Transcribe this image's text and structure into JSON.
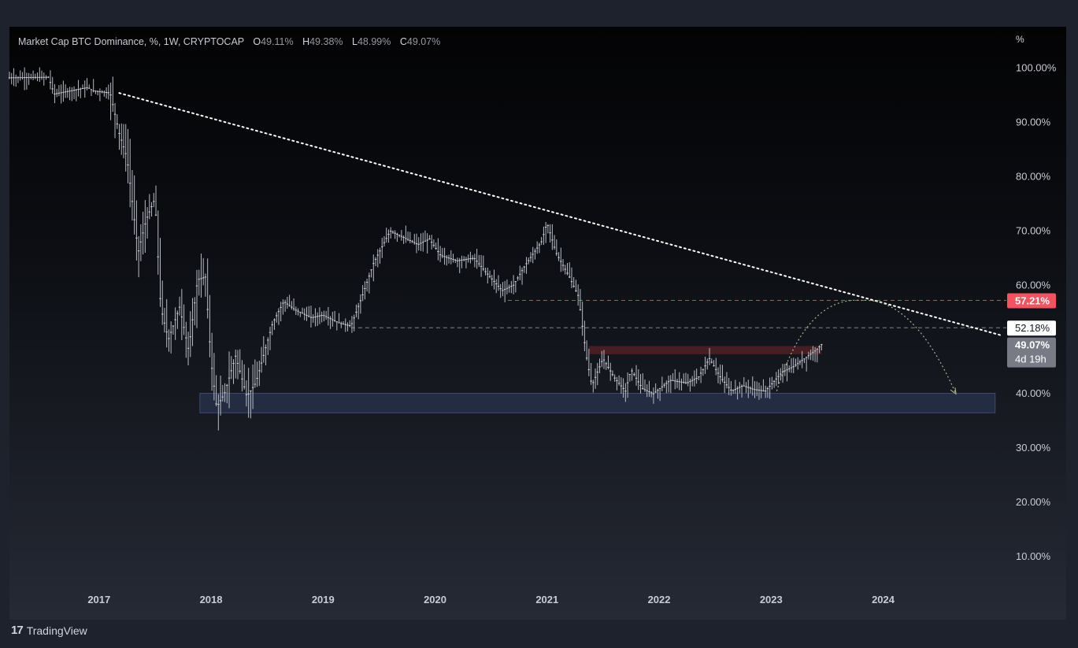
{
  "legend": {
    "title": "Market Cap BTC Dominance, %, 1W, CRYPTOCAP",
    "open_label": "O",
    "open_value": "49.11%",
    "high_label": "H",
    "high_value": "49.38%",
    "low_label": "L",
    "low_value": "48.99%",
    "close_label": "C",
    "close_value": "49.07%"
  },
  "price_scale": {
    "unit": "%"
  },
  "branding": {
    "mark": "17",
    "name": "TradingView"
  },
  "price_labels": {
    "resistance": {
      "text": "57.21%",
      "value": 57.21,
      "color": "#f7525f"
    },
    "level": {
      "text": "52.18%",
      "value": 52.18
    },
    "last": {
      "text": "49.07%",
      "value": 49.07,
      "countdown": "4d 19h"
    }
  },
  "chart_data": {
    "type": "candlestick",
    "title": "Market Cap BTC Dominance, %, 1W, CRYPTOCAP",
    "xlabel": "",
    "ylabel": "%",
    "ylim": [
      4.5,
      107.6
    ],
    "xlim": [
      2016.2,
      2025.1
    ],
    "y_ticks": [
      {
        "value": 100,
        "label": "100.00%"
      },
      {
        "value": 90,
        "label": "90.00%"
      },
      {
        "value": 80,
        "label": "80.00%"
      },
      {
        "value": 70,
        "label": "70.00%"
      },
      {
        "value": 60,
        "label": "60.00%"
      },
      {
        "value": 40,
        "label": "40.00%"
      },
      {
        "value": 30,
        "label": "30.00%"
      },
      {
        "value": 20,
        "label": "20.00%"
      },
      {
        "value": 10,
        "label": "10.00%"
      }
    ],
    "x_ticks": [
      {
        "value": 2017,
        "label": "2017"
      },
      {
        "value": 2018,
        "label": "2018"
      },
      {
        "value": 2019,
        "label": "2019"
      },
      {
        "value": 2020,
        "label": "2020"
      },
      {
        "value": 2021,
        "label": "2021"
      },
      {
        "value": 2022,
        "label": "2022"
      },
      {
        "value": 2023,
        "label": "2023"
      },
      {
        "value": 2024,
        "label": "2024"
      }
    ],
    "price_path": [
      [
        2016.2,
        98.2
      ],
      [
        2016.55,
        98.3
      ],
      [
        2016.6,
        95.2
      ],
      [
        2016.9,
        96.4
      ],
      [
        2016.95,
        95.8
      ],
      [
        2017.1,
        95.4
      ],
      [
        2017.18,
        88.0
      ],
      [
        2017.25,
        83.5
      ],
      [
        2017.35,
        66.0
      ],
      [
        2017.42,
        72.0
      ],
      [
        2017.5,
        76.0
      ],
      [
        2017.55,
        56.0
      ],
      [
        2017.62,
        50.0
      ],
      [
        2017.72,
        56.0
      ],
      [
        2017.8,
        48.0
      ],
      [
        2017.88,
        61.0
      ],
      [
        2017.95,
        61.5
      ],
      [
        2018.0,
        46.0
      ],
      [
        2018.05,
        37.5
      ],
      [
        2018.12,
        40.0
      ],
      [
        2018.22,
        47.0
      ],
      [
        2018.32,
        39.5
      ],
      [
        2018.4,
        42.0
      ],
      [
        2018.55,
        53.0
      ],
      [
        2018.65,
        57.0
      ],
      [
        2018.75,
        55.5
      ],
      [
        2018.9,
        54.0
      ],
      [
        2019.0,
        54.5
      ],
      [
        2019.15,
        53.0
      ],
      [
        2019.25,
        52.5
      ],
      [
        2019.35,
        58.0
      ],
      [
        2019.45,
        64.0
      ],
      [
        2019.6,
        70.0
      ],
      [
        2019.7,
        69.0
      ],
      [
        2019.85,
        67.5
      ],
      [
        2019.95,
        68.5
      ],
      [
        2020.05,
        65.5
      ],
      [
        2020.2,
        64.5
      ],
      [
        2020.35,
        65.0
      ],
      [
        2020.45,
        62.5
      ],
      [
        2020.6,
        59.0
      ],
      [
        2020.7,
        60.0
      ],
      [
        2020.8,
        63.5
      ],
      [
        2020.95,
        68.0
      ],
      [
        2021.0,
        71.5
      ],
      [
        2021.08,
        66.0
      ],
      [
        2021.2,
        61.5
      ],
      [
        2021.28,
        58.0
      ],
      [
        2021.35,
        47.0
      ],
      [
        2021.4,
        41.5
      ],
      [
        2021.5,
        46.5
      ],
      [
        2021.6,
        43.0
      ],
      [
        2021.7,
        40.5
      ],
      [
        2021.75,
        44.5
      ],
      [
        2021.85,
        41.0
      ],
      [
        2021.95,
        40.0
      ],
      [
        2022.1,
        42.5
      ],
      [
        2022.25,
        42.0
      ],
      [
        2022.35,
        43.0
      ],
      [
        2022.45,
        46.5
      ],
      [
        2022.55,
        43.0
      ],
      [
        2022.65,
        40.5
      ],
      [
        2022.75,
        41.5
      ],
      [
        2022.85,
        40.8
      ],
      [
        2022.95,
        40.5
      ],
      [
        2023.1,
        44.0
      ],
      [
        2023.2,
        45.0
      ],
      [
        2023.3,
        46.5
      ],
      [
        2023.4,
        48.0
      ],
      [
        2023.45,
        49.07
      ]
    ],
    "trendline": {
      "from": [
        2017.18,
        95.4
      ],
      "to": [
        2025.05,
        50.8
      ],
      "style": "dotted",
      "color": "#ffffff"
    },
    "levels": [
      {
        "name": "resistance",
        "value": 57.21,
        "from": 2020.65,
        "color": "#f7525f",
        "style": "dashed"
      },
      {
        "name": "level",
        "value": 52.18,
        "from": 2019.25,
        "color": "#9598a1",
        "style": "dashed"
      }
    ],
    "zones": [
      {
        "name": "support-zone",
        "x": [
          2017.9,
          2025.0
        ],
        "y": [
          36.5,
          40.1
        ],
        "color": "#2f3d5e"
      },
      {
        "name": "resistance-zone",
        "x": [
          2021.37,
          2023.45
        ],
        "y": [
          47.3,
          48.8
        ],
        "color": "#5b2228"
      }
    ],
    "projection": {
      "points": [
        [
          2023.05,
          40.5
        ],
        [
          2023.8,
          57.21
        ],
        [
          2024.65,
          40.0
        ]
      ],
      "color": "#a8b08a",
      "style": "dotted-arrow"
    },
    "grid": false,
    "legend": "top-left"
  }
}
